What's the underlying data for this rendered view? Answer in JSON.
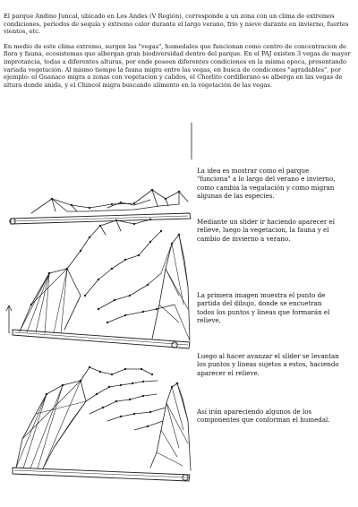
{
  "intro": {
    "p1": "El parque Andino Juncal, ubicado en Los Andes (V Región), corresponde a un zona con un clima de extremos condiciones, periodos de sequía y extremo calor durante el largo verano, frío y nieve durante en invierno, fuertes vientos, etc.",
    "p2": "En medio de este clima extremo, surgen las \"vegas\", humedales que funcionan como centro de concentracion de flora y fauna, ecosistemas que albergan gran biodiversidad dentro del parque. En el PAJ existen 3 vegas de mayor improtancia, todas a diferentes alturas, por ende poseen diferentes condiciones en la misma epoca, presentando variada vegetación. Al mismo tiempo la fauna migra entre las vegas, en busca de condicones \"agradables\", por ejemplo: el Guanaco migra a zonas con vegetacion y calidos, el Chorlito cordillerano se alberga en las vegas de altura donde anida, y el Chincol migra buscando alimento en la vegetación de las vegas."
  },
  "side": {
    "s1": "La idea es mostrar como el parque \"funciona\" a lo largo del verano e invierno, como cambia la vegatación y como migran algunas de las especies.",
    "s2": "Mediante un slider ir haciendo aparecer el relieve, luego la vegetacion, la fauna y el cambio de invierno a verano.",
    "s3": "La primera imagen muestra el punto de partida del dibujo, donde se encuetran todos los puntos y lineas que formarán el relieve,",
    "s4": "Luego al hacer avanzar el slider se levantan los puntos y lineas sujetos a estos, haciendo aparecer el relieve.",
    "s5": "Así irán apareciendo algunos de los componentes que conforman el humedal."
  }
}
